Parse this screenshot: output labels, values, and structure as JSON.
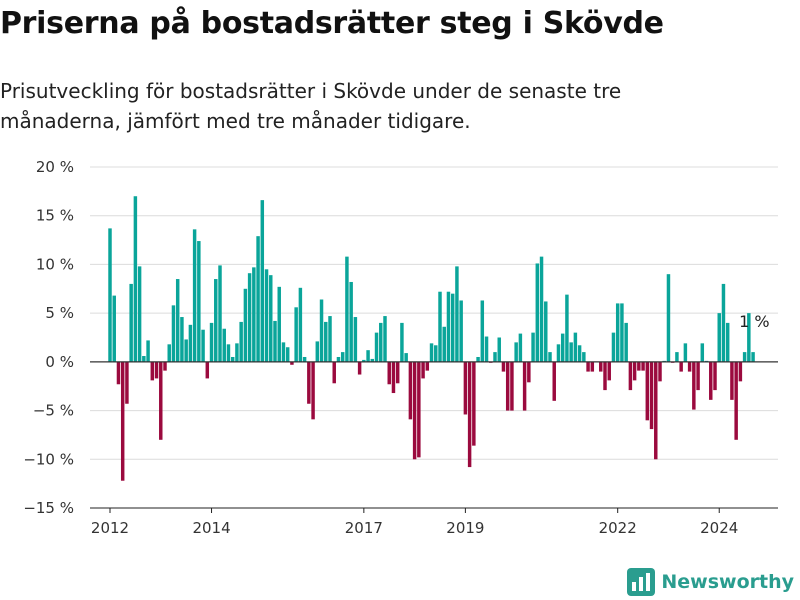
{
  "header": {
    "title": "Priserna på bostadsrätter steg i Skövde",
    "subtitle": "Prisutveckling för bostadsrätter i Skövde under de senaste tre månaderna, jämfört med tre månader tidigare."
  },
  "brand": {
    "name": "Newsworthy",
    "icon": "newsworthy-logo-icon"
  },
  "colors": {
    "positive": "#0aa59a",
    "negative": "#9b0a3e",
    "grid": "#dcdcdc",
    "zero_line": "#333333"
  },
  "chart_data": {
    "type": "bar",
    "ylim": [
      -15,
      20
    ],
    "y_ticks": [
      {
        "value": 20,
        "label": "20 %"
      },
      {
        "value": 15,
        "label": "15 %"
      },
      {
        "value": 10,
        "label": "10 %"
      },
      {
        "value": 5,
        "label": "5 %"
      },
      {
        "value": 0,
        "label": "0 %"
      },
      {
        "value": -5,
        "label": "−5 %"
      },
      {
        "value": -10,
        "label": "−10 %"
      },
      {
        "value": -15,
        "label": "−15 %"
      }
    ],
    "x_range": [
      "2012-01",
      "2025-01"
    ],
    "x_ticks": [
      {
        "date": "2012-01",
        "label": "2012"
      },
      {
        "date": "2014-01",
        "label": "2014"
      },
      {
        "date": "2017-01",
        "label": "2017"
      },
      {
        "date": "2019-01",
        "label": "2019"
      },
      {
        "date": "2022-01",
        "label": "2022"
      },
      {
        "date": "2024-01",
        "label": "2024"
      }
    ],
    "grid": true,
    "annotation": {
      "label": "1 %"
    },
    "series": [
      {
        "points": [
          [
            "2012-01",
            13.7
          ],
          [
            "2012-02",
            6.8
          ],
          [
            "2012-03",
            -2.3
          ],
          [
            "2012-04",
            -12.2
          ],
          [
            "2012-05",
            -4.3
          ],
          [
            "2012-06",
            8.0
          ],
          [
            "2012-07",
            17.0
          ],
          [
            "2012-08",
            9.8
          ],
          [
            "2012-09",
            0.6
          ],
          [
            "2012-10",
            2.2
          ],
          [
            "2012-11",
            -1.9
          ],
          [
            "2012-12",
            -1.7
          ],
          [
            "2013-01",
            -8.0
          ],
          [
            "2013-02",
            -0.9
          ],
          [
            "2013-03",
            1.8
          ],
          [
            "2013-04",
            5.8
          ],
          [
            "2013-05",
            8.5
          ],
          [
            "2013-06",
            4.6
          ],
          [
            "2013-07",
            2.3
          ],
          [
            "2013-08",
            3.8
          ],
          [
            "2013-09",
            13.6
          ],
          [
            "2013-10",
            12.4
          ],
          [
            "2013-11",
            3.3
          ],
          [
            "2013-12",
            -1.7
          ],
          [
            "2014-01",
            4.0
          ],
          [
            "2014-02",
            8.5
          ],
          [
            "2014-03",
            9.9
          ],
          [
            "2014-04",
            3.4
          ],
          [
            "2014-05",
            1.8
          ],
          [
            "2014-06",
            0.5
          ],
          [
            "2014-07",
            1.9
          ],
          [
            "2014-08",
            4.1
          ],
          [
            "2014-09",
            7.5
          ],
          [
            "2014-10",
            9.1
          ],
          [
            "2014-11",
            9.7
          ],
          [
            "2014-12",
            12.9
          ],
          [
            "2015-01",
            16.6
          ],
          [
            "2015-02",
            9.5
          ],
          [
            "2015-03",
            8.9
          ],
          [
            "2015-04",
            4.2
          ],
          [
            "2015-05",
            7.7
          ],
          [
            "2015-06",
            2.0
          ],
          [
            "2015-07",
            1.5
          ],
          [
            "2015-08",
            -0.3
          ],
          [
            "2015-09",
            5.6
          ],
          [
            "2015-10",
            7.6
          ],
          [
            "2015-11",
            0.5
          ],
          [
            "2015-12",
            -4.3
          ],
          [
            "2016-01",
            -5.9
          ],
          [
            "2016-02",
            2.1
          ],
          [
            "2016-03",
            6.4
          ],
          [
            "2016-04",
            4.1
          ],
          [
            "2016-05",
            4.7
          ],
          [
            "2016-06",
            -2.2
          ],
          [
            "2016-07",
            0.5
          ],
          [
            "2016-08",
            1.0
          ],
          [
            "2016-09",
            10.8
          ],
          [
            "2016-10",
            8.2
          ],
          [
            "2016-11",
            4.6
          ],
          [
            "2016-12",
            -1.3
          ],
          [
            "2017-01",
            0.2
          ],
          [
            "2017-02",
            1.2
          ],
          [
            "2017-03",
            0.3
          ],
          [
            "2017-04",
            3.0
          ],
          [
            "2017-05",
            4.0
          ],
          [
            "2017-06",
            4.7
          ],
          [
            "2017-07",
            -2.3
          ],
          [
            "2017-08",
            -3.2
          ],
          [
            "2017-09",
            -2.2
          ],
          [
            "2017-10",
            4.0
          ],
          [
            "2017-11",
            0.9
          ],
          [
            "2017-12",
            -5.9
          ],
          [
            "2018-01",
            -10.0
          ],
          [
            "2018-02",
            -9.8
          ],
          [
            "2018-03",
            -1.7
          ],
          [
            "2018-04",
            -0.9
          ],
          [
            "2018-05",
            1.9
          ],
          [
            "2018-06",
            1.7
          ],
          [
            "2018-07",
            7.2
          ],
          [
            "2018-08",
            3.6
          ],
          [
            "2018-09",
            7.2
          ],
          [
            "2018-10",
            7.0
          ],
          [
            "2018-11",
            9.8
          ],
          [
            "2018-12",
            6.3
          ],
          [
            "2019-01",
            -5.4
          ],
          [
            "2019-02",
            -10.8
          ],
          [
            "2019-03",
            -8.6
          ],
          [
            "2019-04",
            0.5
          ],
          [
            "2019-05",
            6.3
          ],
          [
            "2019-06",
            2.6
          ],
          [
            "2019-07",
            -0.1
          ],
          [
            "2019-08",
            1.0
          ],
          [
            "2019-09",
            2.5
          ],
          [
            "2019-10",
            -1.0
          ],
          [
            "2019-11",
            -5.0
          ],
          [
            "2019-12",
            -5.0
          ],
          [
            "2020-01",
            2.0
          ],
          [
            "2020-02",
            2.9
          ],
          [
            "2020-03",
            -5.0
          ],
          [
            "2020-04",
            -2.1
          ],
          [
            "2020-05",
            3.0
          ],
          [
            "2020-06",
            10.1
          ],
          [
            "2020-07",
            10.8
          ],
          [
            "2020-08",
            6.2
          ],
          [
            "2020-09",
            1.0
          ],
          [
            "2020-10",
            -4.0
          ],
          [
            "2020-11",
            1.8
          ],
          [
            "2020-12",
            2.9
          ],
          [
            "2021-01",
            6.9
          ],
          [
            "2021-02",
            2.0
          ],
          [
            "2021-03",
            3.0
          ],
          [
            "2021-04",
            1.7
          ],
          [
            "2021-05",
            1.0
          ],
          [
            "2021-06",
            -1.0
          ],
          [
            "2021-07",
            -1.0
          ],
          [
            "2021-08",
            0.0
          ],
          [
            "2021-09",
            -1.0
          ],
          [
            "2021-10",
            -2.9
          ],
          [
            "2021-11",
            -1.9
          ],
          [
            "2021-12",
            3.0
          ],
          [
            "2022-01",
            6.0
          ],
          [
            "2022-02",
            6.0
          ],
          [
            "2022-03",
            4.0
          ],
          [
            "2022-04",
            -2.9
          ],
          [
            "2022-05",
            -1.9
          ],
          [
            "2022-06",
            -0.9
          ],
          [
            "2022-07",
            -0.9
          ],
          [
            "2022-08",
            -6.0
          ],
          [
            "2022-09",
            -6.9
          ],
          [
            "2022-10",
            -10.0
          ],
          [
            "2022-11",
            -2.0
          ],
          [
            "2022-12",
            0.1
          ],
          [
            "2023-01",
            9.0
          ],
          [
            "2023-02",
            -0.1
          ],
          [
            "2023-03",
            1.0
          ],
          [
            "2023-04",
            -1.0
          ],
          [
            "2023-05",
            1.9
          ],
          [
            "2023-06",
            -1.0
          ],
          [
            "2023-07",
            -4.9
          ],
          [
            "2023-08",
            -2.9
          ],
          [
            "2023-09",
            1.9
          ],
          [
            "2023-10",
            0.1
          ],
          [
            "2023-11",
            -3.9
          ],
          [
            "2023-12",
            -2.9
          ],
          [
            "2024-01",
            5.0
          ],
          [
            "2024-02",
            8.0
          ],
          [
            "2024-03",
            4.0
          ],
          [
            "2024-04",
            -3.9
          ],
          [
            "2024-05",
            -8.0
          ],
          [
            "2024-06",
            -2.0
          ],
          [
            "2024-07",
            1.0
          ],
          [
            "2024-08",
            5.0
          ],
          [
            "2024-09",
            1.0
          ]
        ]
      }
    ]
  }
}
